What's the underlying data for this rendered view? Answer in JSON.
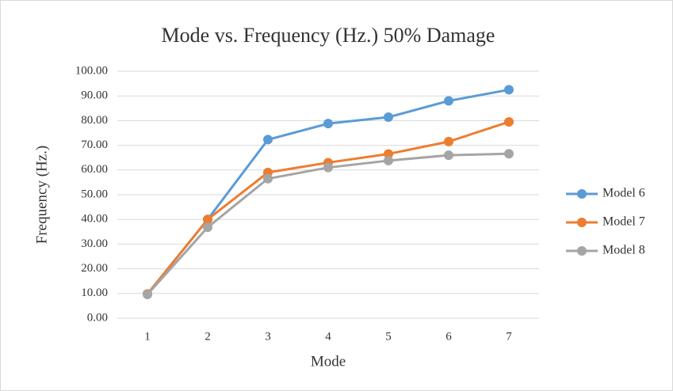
{
  "chart_data": {
    "type": "line",
    "title": "Mode vs. Frequency  (Hz.) 50% Damage",
    "x_label": "Mode",
    "y_label": "Frequency (Hz.)",
    "categories": [
      1,
      2,
      3,
      4,
      5,
      6,
      7
    ],
    "series": [
      {
        "name": "Model 6",
        "color": "#5b9bd5",
        "values": [
          9.8,
          40,
          72.3,
          78.8,
          81.4,
          88,
          92.5
        ]
      },
      {
        "name": "Model 7",
        "color": "#ed7d31",
        "values": [
          9.8,
          40,
          59,
          63,
          66.5,
          71.5,
          79.5
        ]
      },
      {
        "name": "Model 8",
        "color": "#a5a5a5",
        "values": [
          9.6,
          36.8,
          56.5,
          61,
          63.8,
          66,
          66.6
        ]
      }
    ],
    "ylim": [
      0,
      100
    ],
    "yticks": [
      {
        "value": 0,
        "label": "0.00"
      },
      {
        "value": 10,
        "label": "10.00"
      },
      {
        "value": 20,
        "label": "20.00"
      },
      {
        "value": 30,
        "label": "30.00"
      },
      {
        "value": 40,
        "label": "40.00"
      },
      {
        "value": 50,
        "label": "50.00"
      },
      {
        "value": 60,
        "label": "60.00"
      },
      {
        "value": 70,
        "label": "70.00"
      },
      {
        "value": 80,
        "label": "80.00"
      },
      {
        "value": 90,
        "label": "90.00"
      },
      {
        "value": 100,
        "label": "100.00"
      }
    ],
    "grid": true,
    "legend": "right"
  }
}
